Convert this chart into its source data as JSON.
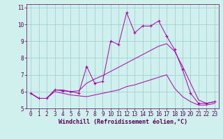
{
  "xlabel": "Windchill (Refroidissement éolien,°C)",
  "background_color": "#cff0ec",
  "line_color": "#aa00aa",
  "xlim": [
    -0.5,
    23.5
  ],
  "ylim": [
    5,
    11.2
  ],
  "yticks": [
    5,
    6,
    7,
    8,
    9,
    10,
    11
  ],
  "xticks": [
    0,
    1,
    2,
    3,
    4,
    5,
    6,
    7,
    8,
    9,
    10,
    11,
    12,
    13,
    14,
    15,
    16,
    17,
    18,
    19,
    20,
    21,
    22,
    23
  ],
  "grid_color": "#99cccc",
  "line1_x": [
    0,
    1,
    2,
    3,
    4,
    5,
    6,
    7,
    8,
    9,
    10,
    11,
    12,
    13,
    14,
    15,
    16,
    17,
    18,
    19,
    20,
    21,
    22,
    23
  ],
  "line1_y": [
    5.9,
    5.6,
    5.6,
    6.1,
    6.05,
    6.0,
    5.9,
    7.5,
    6.5,
    6.6,
    9.0,
    8.8,
    10.7,
    9.5,
    9.9,
    9.9,
    10.2,
    9.3,
    8.5,
    7.3,
    5.9,
    5.3,
    5.3,
    5.4
  ],
  "line2_x": [
    0,
    1,
    2,
    3,
    4,
    5,
    6,
    7,
    8,
    9,
    10,
    11,
    12,
    13,
    14,
    15,
    16,
    17,
    18,
    19,
    20,
    21,
    22,
    23
  ],
  "line2_y": [
    5.9,
    5.6,
    5.6,
    6.1,
    6.1,
    6.0,
    6.05,
    6.5,
    6.75,
    6.95,
    7.2,
    7.45,
    7.7,
    7.95,
    8.2,
    8.45,
    8.7,
    8.85,
    8.4,
    7.5,
    6.5,
    5.5,
    5.3,
    5.4
  ],
  "line3_x": [
    0,
    1,
    2,
    3,
    4,
    5,
    6,
    7,
    8,
    9,
    10,
    11,
    12,
    13,
    14,
    15,
    16,
    17,
    18,
    19,
    20,
    21,
    22,
    23
  ],
  "line3_y": [
    5.9,
    5.6,
    5.6,
    6.0,
    5.9,
    5.8,
    5.75,
    5.7,
    5.8,
    5.9,
    6.0,
    6.1,
    6.3,
    6.4,
    6.55,
    6.7,
    6.85,
    7.0,
    6.2,
    5.7,
    5.4,
    5.2,
    5.2,
    5.3
  ],
  "xlabel_color": "#550055",
  "xlabel_fontsize": 6,
  "tick_fontsize": 5.5,
  "tick_color": "#550055"
}
